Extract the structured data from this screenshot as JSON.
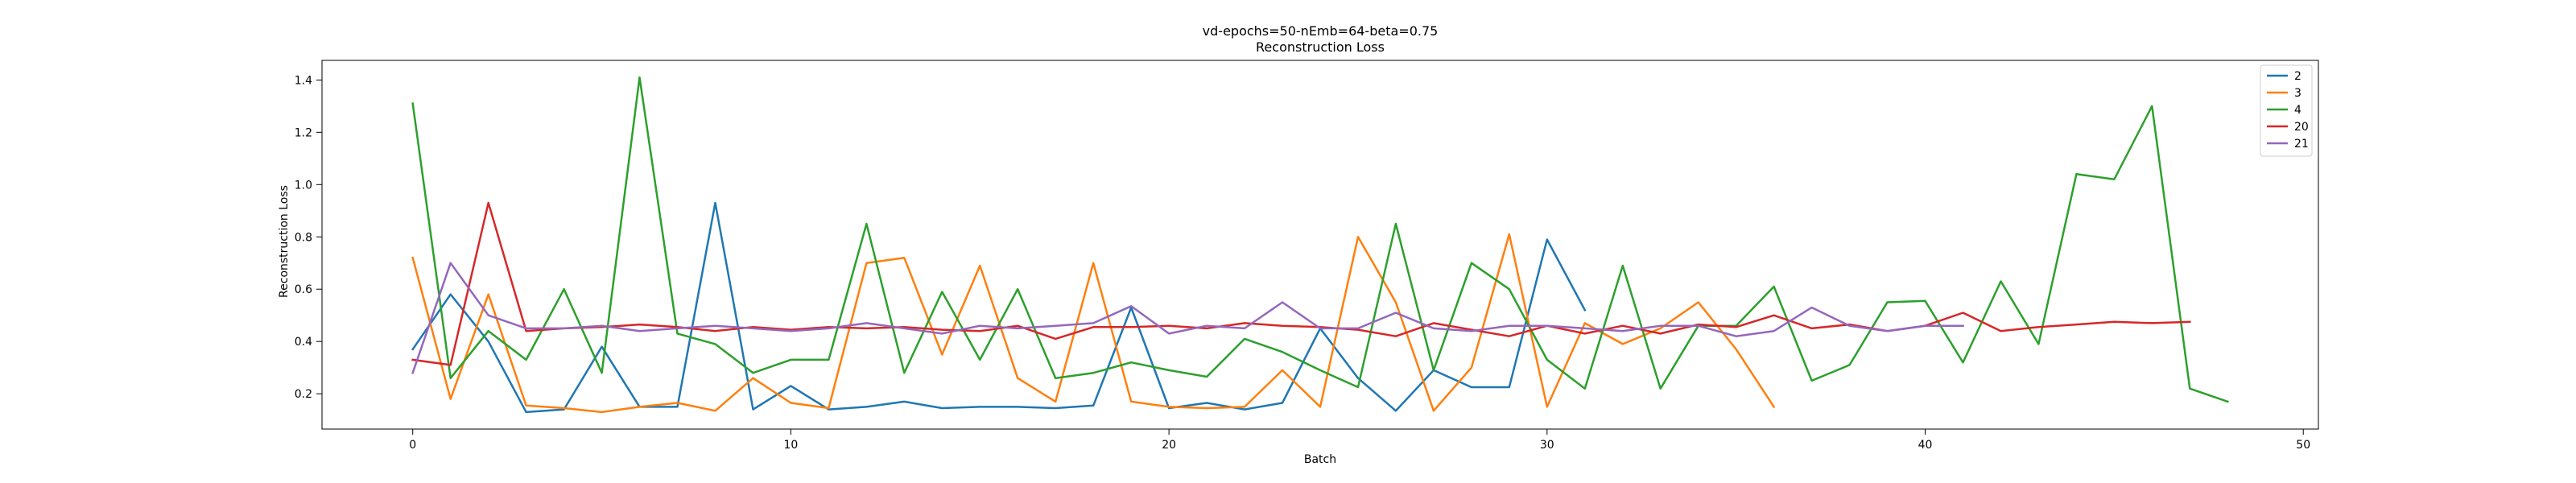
{
  "chart_data": {
    "type": "line",
    "title": "vd-epochs=50-nEmb=64-beta=0.75",
    "subtitle": "Reconstruction Loss",
    "xlabel": "Batch",
    "ylabel": "Reconstruction Loss",
    "xlim": [
      -2.4,
      50.4
    ],
    "ylim": [
      0.065,
      1.475
    ],
    "xticks": [
      0,
      10,
      20,
      30,
      40,
      50
    ],
    "yticks": [
      0.2,
      0.4,
      0.6,
      0.8,
      1.0,
      1.2,
      1.4
    ],
    "ytick_labels": [
      "0.2",
      "0.4",
      "0.6",
      "0.8",
      "1.0",
      "1.2",
      "1.4"
    ],
    "grid": false,
    "legend_position": "top-right",
    "series": [
      {
        "name": "2",
        "color": "#1f77b4",
        "values": [
          0.37,
          0.58,
          0.4,
          0.13,
          0.14,
          0.38,
          0.15,
          0.15,
          0.93,
          0.14,
          0.23,
          0.14,
          0.15,
          0.17,
          0.145,
          0.15,
          0.15,
          0.145,
          0.155,
          0.53,
          0.145,
          0.165,
          0.14,
          0.165,
          0.45,
          0.26,
          0.135,
          0.29,
          0.225,
          0.225,
          0.79,
          0.52
        ]
      },
      {
        "name": "3",
        "color": "#ff7f0e",
        "values": [
          0.72,
          0.18,
          0.58,
          0.155,
          0.145,
          0.13,
          0.15,
          0.165,
          0.135,
          0.26,
          0.165,
          0.145,
          0.7,
          0.72,
          0.35,
          0.69,
          0.26,
          0.17,
          0.7,
          0.17,
          0.15,
          0.145,
          0.15,
          0.29,
          0.15,
          0.8,
          0.55,
          0.135,
          0.3,
          0.81,
          0.15,
          0.47,
          0.39,
          0.45,
          0.55,
          0.37,
          0.15
        ]
      },
      {
        "name": "4",
        "color": "#2ca02c",
        "values": [
          1.31,
          0.26,
          0.44,
          0.33,
          0.6,
          0.28,
          1.41,
          0.43,
          0.39,
          0.28,
          0.33,
          0.33,
          0.85,
          0.28,
          0.59,
          0.33,
          0.6,
          0.26,
          0.28,
          0.32,
          0.29,
          0.265,
          0.41,
          0.36,
          0.29,
          0.225,
          0.85,
          0.29,
          0.7,
          0.6,
          0.33,
          0.22,
          0.69,
          0.22,
          0.46,
          0.46,
          0.61,
          0.25,
          0.31,
          0.55,
          0.555,
          0.32,
          0.63,
          0.39,
          1.04,
          1.02,
          1.3,
          0.22,
          0.17
        ]
      },
      {
        "name": "20",
        "color": "#d62728",
        "values": [
          0.33,
          0.31,
          0.93,
          0.44,
          0.45,
          0.455,
          0.465,
          0.455,
          0.44,
          0.455,
          0.445,
          0.455,
          0.45,
          0.455,
          0.445,
          0.44,
          0.46,
          0.41,
          0.455,
          0.455,
          0.46,
          0.45,
          0.47,
          0.46,
          0.455,
          0.445,
          0.42,
          0.47,
          0.445,
          0.42,
          0.46,
          0.43,
          0.46,
          0.43,
          0.465,
          0.455,
          0.5,
          0.45,
          0.465,
          0.44,
          0.46,
          0.51,
          0.44,
          0.455,
          0.465,
          0.475,
          0.47,
          0.475
        ]
      },
      {
        "name": "21",
        "color": "#9467bd",
        "values": [
          0.28,
          0.7,
          0.5,
          0.45,
          0.45,
          0.46,
          0.44,
          0.45,
          0.46,
          0.45,
          0.44,
          0.45,
          0.47,
          0.45,
          0.43,
          0.46,
          0.45,
          0.46,
          0.47,
          0.535,
          0.43,
          0.46,
          0.45,
          0.55,
          0.45,
          0.45,
          0.51,
          0.45,
          0.44,
          0.46,
          0.46,
          0.45,
          0.44,
          0.46,
          0.46,
          0.42,
          0.44,
          0.53,
          0.46,
          0.44,
          0.46,
          0.46
        ]
      }
    ]
  }
}
